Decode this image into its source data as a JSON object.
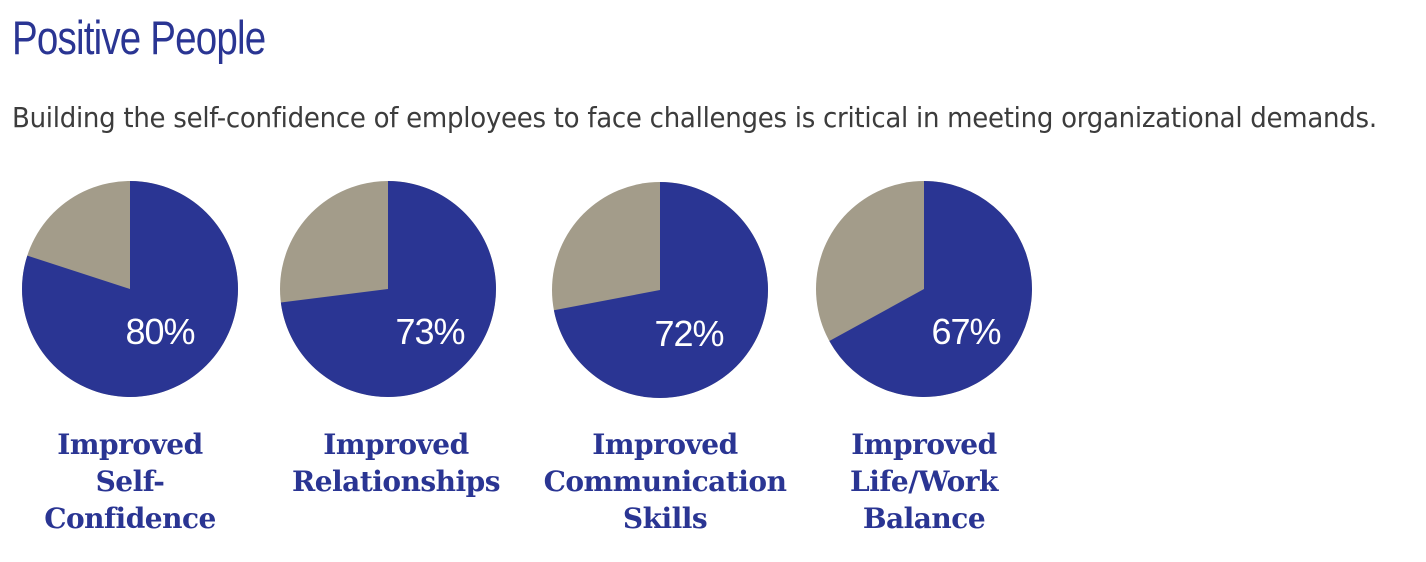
{
  "header": {
    "title": "Positive People",
    "subtitle": "Building the self-confidence of employees to face challenges is critical in meeting organizational demands."
  },
  "colors": {
    "primary": "#2a3593",
    "secondary": "#a39c8a",
    "text": "#3c3c3c"
  },
  "chart_data": {
    "type": "pie",
    "charts": [
      {
        "label": "Improved\nSelf-\nConfidence",
        "value": 80,
        "value_label": "80%"
      },
      {
        "label": "Improved\nRelationships",
        "value": 73,
        "value_label": "73%"
      },
      {
        "label": "Improved\nCommunication\nSkills",
        "value": 72,
        "value_label": "72%"
      },
      {
        "label": "Improved\nLife/Work\nBalance",
        "value": 67,
        "value_label": "67%"
      }
    ]
  }
}
